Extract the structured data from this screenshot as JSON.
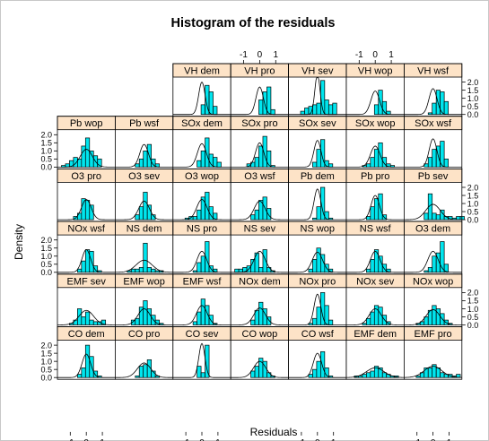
{
  "chart_data": {
    "type": "histogram",
    "title": "Histogram of the residuals",
    "xlabel": "Residuals",
    "ylabel": "Density",
    "x_ticks": [
      "-1",
      "0",
      "1"
    ],
    "y_ticks": [
      "0.0",
      "0.5",
      "1.0",
      "1.5",
      "2.0"
    ],
    "x_range": [
      -1.8,
      1.8
    ],
    "y_range": [
      0,
      2.2
    ],
    "bin_start": -1.8,
    "bin_width": 0.25,
    "colors": {
      "bars": "#00e5ee",
      "strip": "#fde3c7",
      "curve": "#000000",
      "frame": "#000000"
    },
    "panels": [
      {
        "name": "VH_dem",
        "densities": [
          0,
          0,
          0,
          0,
          0,
          0,
          0,
          0.6,
          1.8,
          1.4,
          0.5,
          0,
          0,
          0,
          0
        ],
        "curve_peak": 2.0,
        "curve_sd": 0.2
      },
      {
        "name": "VH_pro",
        "densities": [
          0,
          0,
          0,
          0,
          0,
          0,
          0,
          0.9,
          1.4,
          1.7,
          0.3,
          0,
          0,
          0,
          0
        ],
        "curve_peak": 1.7,
        "curve_sd": 0.23
      },
      {
        "name": "VH_sev",
        "densities": [
          0,
          0,
          0,
          0.2,
          0.4,
          0.5,
          0.6,
          0.7,
          2.1,
          0.9,
          0.6,
          0.7,
          0,
          0,
          0
        ],
        "curve_peak": 2.5,
        "curve_sd": 0.16
      },
      {
        "name": "VH_wop",
        "densities": [
          0,
          0,
          0,
          0,
          0,
          0,
          0,
          0.6,
          1.5,
          0.8,
          0.2,
          0,
          0,
          0,
          0
        ],
        "curve_peak": 1.45,
        "curve_sd": 0.27
      },
      {
        "name": "VH_wsf",
        "densities": [
          0,
          0,
          0,
          0,
          0,
          0,
          0.1,
          0.7,
          1.5,
          1.4,
          0.8,
          0,
          0,
          0,
          0
        ],
        "curve_peak": 1.6,
        "curve_sd": 0.25
      },
      {
        "name": "Pb_wop",
        "densities": [
          0,
          0.1,
          0.2,
          0.4,
          0.6,
          0.5,
          1.3,
          1.8,
          1.0,
          0.7,
          0.5,
          0,
          0,
          0,
          0
        ],
        "curve_peak": 1.1,
        "curve_sd": 0.38
      },
      {
        "name": "Pb_wsf",
        "densities": [
          0,
          0,
          0,
          0,
          0,
          0.2,
          0.5,
          1.0,
          1.4,
          0.5,
          0.2,
          0,
          0,
          0,
          0
        ],
        "curve_peak": 1.4,
        "curve_sd": 0.27
      },
      {
        "name": "SOx_dem",
        "densities": [
          0,
          0,
          0,
          0,
          0,
          0,
          0.4,
          1.0,
          1.8,
          0.8,
          0.6,
          0.3,
          0,
          0,
          0
        ],
        "curve_peak": 1.45,
        "curve_sd": 0.28
      },
      {
        "name": "SOx_pro",
        "densities": [
          0,
          0,
          0,
          0,
          0.2,
          0.3,
          0.6,
          1.3,
          1.9,
          1.0,
          0.1,
          0,
          0,
          0,
          0
        ],
        "curve_peak": 1.5,
        "curve_sd": 0.26
      },
      {
        "name": "SOx_sev",
        "densities": [
          0,
          0,
          0,
          0,
          0,
          0,
          0.3,
          1.1,
          1.7,
          0.4,
          0.2,
          0,
          0,
          0,
          0
        ],
        "curve_peak": 1.65,
        "curve_sd": 0.22
      },
      {
        "name": "SOx_wop",
        "densities": [
          0,
          0,
          0,
          0,
          0.1,
          0.2,
          0.6,
          1.1,
          1.5,
          0.6,
          0.2,
          0.1,
          0,
          0,
          0
        ],
        "curve_peak": 1.3,
        "curve_sd": 0.3
      },
      {
        "name": "SOx_wsf",
        "densities": [
          0,
          0,
          0,
          0,
          0,
          0.2,
          0.6,
          1.1,
          1.3,
          1.6,
          0.5,
          0,
          0,
          0,
          0
        ],
        "curve_peak": 1.75,
        "curve_sd": 0.24
      },
      {
        "name": "O3_pro",
        "densities": [
          0,
          0,
          0,
          0,
          0.2,
          0.4,
          1.3,
          1.2,
          0.9,
          0,
          0,
          0,
          0,
          0,
          0
        ],
        "curve_peak": 1.25,
        "curve_sd": 0.3
      },
      {
        "name": "O3_sev",
        "densities": [
          0,
          0,
          0,
          0,
          0,
          0.3,
          0.8,
          1.7,
          0.9,
          0.3,
          0,
          0,
          0,
          0,
          0
        ],
        "curve_peak": 1.15,
        "curve_sd": 0.33
      },
      {
        "name": "O3_wop",
        "densities": [
          0,
          0,
          0,
          0.1,
          0.2,
          0.2,
          0.6,
          1.4,
          1.7,
          0.8,
          0.4,
          0,
          0,
          0,
          0
        ],
        "curve_peak": 1.25,
        "curve_sd": 0.32
      },
      {
        "name": "O3_wsf",
        "densities": [
          0,
          0,
          0,
          0,
          0,
          0.3,
          0.6,
          1.2,
          1.4,
          0.7,
          0,
          0,
          0,
          0,
          0
        ],
        "curve_peak": 1.15,
        "curve_sd": 0.34
      },
      {
        "name": "Pb_dem",
        "densities": [
          0,
          0,
          0,
          0,
          0,
          0,
          0.1,
          0.8,
          2.0,
          0.5,
          0.1,
          0,
          0,
          0,
          0
        ],
        "curve_peak": 1.9,
        "curve_sd": 0.21
      },
      {
        "name": "Pb_pro",
        "densities": [
          0,
          0,
          0,
          0,
          0,
          0.2,
          0.8,
          1.3,
          1.6,
          0.3,
          0,
          0,
          0,
          0,
          0
        ],
        "curve_peak": 1.5,
        "curve_sd": 0.26
      },
      {
        "name": "Pb_sev",
        "densities": [
          0,
          0,
          0,
          0,
          0,
          0.4,
          1.6,
          0.4,
          0.3,
          0.6,
          0.2,
          0.2,
          0.1,
          0.2,
          0.2
        ],
        "curve_peak": 0.95,
        "curve_sd": 0.45
      },
      {
        "name": "NOx_wsf",
        "densities": [
          0,
          0,
          0,
          0,
          0,
          0.2,
          0.7,
          1.4,
          1.3,
          0.4,
          0.1,
          0,
          0,
          0,
          0
        ],
        "curve_peak": 1.4,
        "curve_sd": 0.27
      },
      {
        "name": "NS_dem",
        "densities": [
          0,
          0,
          0,
          0.1,
          0.2,
          0.2,
          0.3,
          1.8,
          0.3,
          0.2,
          0.1,
          0.1,
          0,
          0,
          0
        ],
        "curve_peak": 0.75,
        "curve_sd": 0.5
      },
      {
        "name": "NS_pro",
        "densities": [
          0,
          0,
          0,
          0,
          0,
          0.1,
          0.6,
          1.0,
          1.9,
          0.4,
          0.2,
          0,
          0,
          0,
          0
        ],
        "curve_peak": 1.3,
        "curve_sd": 0.3
      },
      {
        "name": "NS_sev",
        "densities": [
          0,
          0.2,
          0.2,
          0.3,
          0.4,
          0.8,
          1.2,
          0.3,
          1.4,
          0.3,
          0.1,
          0,
          0,
          0,
          0
        ],
        "curve_peak": 1.3,
        "curve_sd": 0.35
      },
      {
        "name": "NS_wop",
        "densities": [
          0,
          0,
          0,
          0,
          0,
          0.2,
          0.8,
          1.5,
          1.1,
          0.5,
          0.2,
          0,
          0,
          0,
          0
        ],
        "curve_peak": 1.25,
        "curve_sd": 0.32
      },
      {
        "name": "NS_wsf",
        "densities": [
          0,
          0,
          0,
          0,
          0,
          0.2,
          0.8,
          1.4,
          1.0,
          0.5,
          0.2,
          0,
          0,
          0,
          0
        ],
        "curve_peak": 1.3,
        "curve_sd": 0.3
      },
      {
        "name": "O3_dem",
        "densities": [
          0,
          0,
          0,
          0,
          0,
          0.1,
          0.3,
          1.0,
          1.2,
          1.9,
          0.5,
          0,
          0,
          0,
          0
        ],
        "curve_peak": 1.3,
        "curve_sd": 0.32
      },
      {
        "name": "EMF_sev",
        "densities": [
          0,
          0,
          0,
          0.1,
          0.3,
          1.0,
          0.5,
          0.8,
          0.3,
          0.2,
          0.2,
          0.3,
          0,
          0,
          0
        ],
        "curve_peak": 0.9,
        "curve_sd": 0.45
      },
      {
        "name": "EMF_wop",
        "densities": [
          0,
          0,
          0,
          0,
          0.3,
          0.4,
          1.1,
          1.5,
          1.0,
          0.6,
          0.3,
          0.1,
          0,
          0,
          0
        ],
        "curve_peak": 1.0,
        "curve_sd": 0.38
      },
      {
        "name": "EMF_wsf",
        "densities": [
          0,
          0,
          0,
          0,
          0,
          0.2,
          0.8,
          1.6,
          1.2,
          0.6,
          0.1,
          0,
          0,
          0,
          0
        ],
        "curve_peak": 1.2,
        "curve_sd": 0.33
      },
      {
        "name": "NOx_dem",
        "densities": [
          0,
          0,
          0,
          0,
          0,
          0.3,
          0.9,
          1.4,
          1.0,
          0.5,
          0,
          0,
          0,
          0,
          0
        ],
        "curve_peak": 1.05,
        "curve_sd": 0.36
      },
      {
        "name": "NOx_pro",
        "densities": [
          0,
          0,
          0,
          0,
          0,
          0.1,
          0.4,
          1.1,
          2.0,
          1.2,
          0.3,
          0,
          0,
          0,
          0
        ],
        "curve_peak": 1.9,
        "curve_sd": 0.21
      },
      {
        "name": "NOx_sev",
        "densities": [
          0,
          0,
          0,
          0,
          0.1,
          0.4,
          0.8,
          1.2,
          1.1,
          0.6,
          0.2,
          0,
          0,
          0,
          0
        ],
        "curve_peak": 1.0,
        "curve_sd": 0.38
      },
      {
        "name": "NOx_wop",
        "densities": [
          0,
          0,
          0,
          0.1,
          0.2,
          0.5,
          0.9,
          1.2,
          1.0,
          0.7,
          0.3,
          0.1,
          0,
          0,
          0
        ],
        "curve_peak": 0.95,
        "curve_sd": 0.42
      },
      {
        "name": "CO_dem",
        "densities": [
          0,
          0,
          0,
          0,
          0,
          0.2,
          0.6,
          2.0,
          1.3,
          0.4,
          0.1,
          0,
          0,
          0,
          0
        ],
        "curve_peak": 1.45,
        "curve_sd": 0.27
      },
      {
        "name": "CO_pro",
        "densities": [
          0,
          0,
          0,
          0,
          0,
          0.1,
          0.7,
          0.8,
          1.1,
          0.4,
          0.1,
          0,
          0,
          0,
          0
        ],
        "curve_peak": 0.9,
        "curve_sd": 0.42
      },
      {
        "name": "CO_sev",
        "densities": [
          0,
          0,
          0,
          0,
          0,
          0,
          0.7,
          0.3,
          2.0,
          0,
          0,
          0,
          0,
          0,
          0
        ],
        "curve_peak": 2.1,
        "curve_sd": 0.19
      },
      {
        "name": "CO_wop",
        "densities": [
          0,
          0,
          0,
          0,
          0,
          0.4,
          0.7,
          1.2,
          1.0,
          0.3,
          0.1,
          0,
          0,
          0,
          0
        ],
        "curve_peak": 1.0,
        "curve_sd": 0.38
      },
      {
        "name": "CO_wsf",
        "densities": [
          0,
          0,
          0,
          0,
          0,
          0.2,
          0.5,
          1.0,
          1.6,
          0.6,
          0.1,
          0,
          0,
          0,
          0
        ],
        "curve_peak": 1.5,
        "curve_sd": 0.26
      },
      {
        "name": "EMF_dem",
        "densities": [
          0,
          0,
          0.1,
          0.1,
          0.2,
          0.3,
          0.4,
          0.7,
          0.6,
          0.3,
          0.2,
          0.1,
          0.1,
          0,
          0
        ],
        "curve_peak": 0.6,
        "curve_sd": 0.55
      },
      {
        "name": "EMF_pro",
        "densities": [
          0,
          0,
          0,
          0.1,
          0.3,
          0.6,
          0.6,
          0.8,
          0.6,
          0.3,
          0.2,
          0.2,
          0.1,
          0.2,
          0
        ],
        "curve_peak": 0.7,
        "curve_sd": 0.55
      }
    ]
  }
}
